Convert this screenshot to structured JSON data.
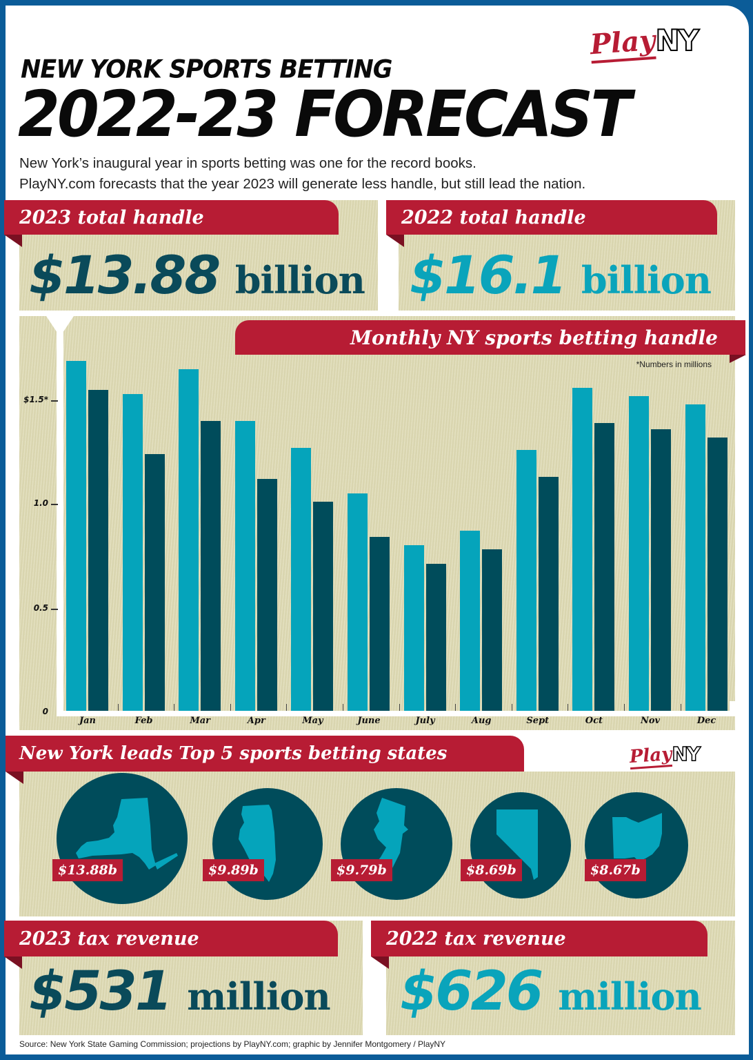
{
  "header": {
    "subtitle": "NEW YORK SPORTS BETTING",
    "title": "2022-23 FORECAST",
    "intro_line1": "New York’s inaugural year in sports betting was one for the record books.",
    "intro_line2": "PlayNY.com forecasts that the year 2023 will generate less handle, but still lead the nation.",
    "logo_play": "Play",
    "logo_ny": "NY"
  },
  "handle": {
    "h2023": {
      "label": "2023 total handle",
      "amount": "$13.88",
      "unit": "billion"
    },
    "h2022": {
      "label": "2022 total handle",
      "amount": "$16.1",
      "unit": "billion"
    }
  },
  "chart": {
    "title": "Monthly NY sports betting handle",
    "note": "*Numbers in millions",
    "yticks": [
      "$1.5*",
      "1.0",
      "0.5",
      "0"
    ]
  },
  "states": {
    "title": "New York leads Top 5 sports betting states",
    "logo_play": "Play",
    "logo_ny": "NY",
    "items": [
      {
        "state": "New York",
        "value": "$13.88b"
      },
      {
        "state": "Illinois",
        "value": "$9.89b"
      },
      {
        "state": "New Jersey",
        "value": "$9.79b"
      },
      {
        "state": "Nevada",
        "value": "$8.69b"
      },
      {
        "state": "Ohio",
        "value": "$8.67b"
      }
    ]
  },
  "tax": {
    "t2023": {
      "label": "2023 tax revenue",
      "amount": "$531",
      "unit": "million"
    },
    "t2022": {
      "label": "2022 tax revenue",
      "amount": "$626",
      "unit": "million"
    }
  },
  "source": "Source: New York State Gaming Commission; projections by PlayNY.com; graphic by Jennifer Montgomery / PlayNY",
  "colors": {
    "red": "#b71c34",
    "teal_2022": "#05a4bb",
    "dark_teal_2023": "#004c5b",
    "beige": "#ddd9b2",
    "border_blue": "#0b5c98"
  },
  "chart_data": {
    "type": "bar",
    "title": "Monthly NY sports betting handle",
    "subtitle": "*Numbers in millions",
    "xlabel": "",
    "ylabel": "",
    "categories": [
      "Jan",
      "Feb",
      "Mar",
      "Apr",
      "May",
      "June",
      "July",
      "Aug",
      "Sept",
      "Oct",
      "Nov",
      "Dec"
    ],
    "series": [
      {
        "name": "2022",
        "color": "#05a4bb",
        "values": [
          1.69,
          1.53,
          1.65,
          1.4,
          1.27,
          1.05,
          0.8,
          0.87,
          1.26,
          1.56,
          1.52,
          1.48
        ]
      },
      {
        "name": "2023 (forecast)",
        "color": "#004c5b",
        "values": [
          1.55,
          1.24,
          1.4,
          1.12,
          1.01,
          0.84,
          0.71,
          0.78,
          1.13,
          1.39,
          1.36,
          1.32
        ]
      }
    ],
    "yticks": [
      0,
      0.5,
      1.0,
      1.5
    ],
    "ytick_labels": [
      "0",
      "0.5",
      "1.0",
      "$1.5*"
    ],
    "ylim": [
      0,
      1.85
    ],
    "grid": false,
    "legend": "none"
  }
}
